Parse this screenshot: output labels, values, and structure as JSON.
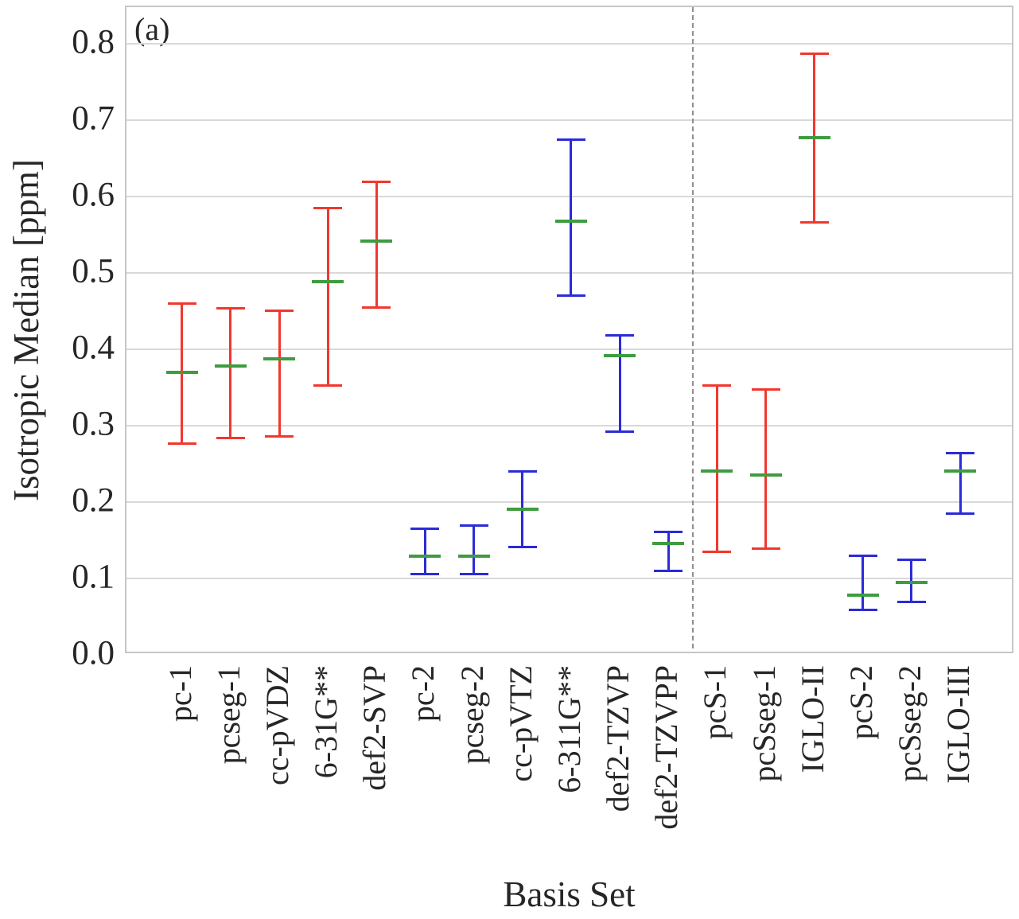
{
  "colors": {
    "red": "#f2372e",
    "blue": "#2b2bd8",
    "green": "#3f9c41",
    "grid": "#d9d9d9",
    "spine": "#c6c6c6",
    "divider": "#8f8f8f",
    "text": "#262626"
  },
  "chart_data": {
    "type": "errorbar",
    "annotation": "(a)",
    "xlabel": "Basis Set",
    "ylabel": "Isotropic Median [ppm]",
    "ylim": [
      0.0,
      0.85
    ],
    "yticks": [
      "0.0",
      "0.1",
      "0.2",
      "0.3",
      "0.4",
      "0.5",
      "0.6",
      "0.7",
      "0.8"
    ],
    "grid": "horizontal-only",
    "legend": "none",
    "divider_after_index": 10,
    "series": [
      {
        "label": "pc-1",
        "color": "red",
        "low": 0.277,
        "median": 0.37,
        "high": 0.46
      },
      {
        "label": "pcseg-1",
        "color": "red",
        "low": 0.284,
        "median": 0.378,
        "high": 0.454
      },
      {
        "label": "cc-pVDZ",
        "color": "red",
        "low": 0.286,
        "median": 0.387,
        "high": 0.451
      },
      {
        "label": "6-31G**",
        "color": "red",
        "low": 0.353,
        "median": 0.489,
        "high": 0.585
      },
      {
        "label": "def2-SVP",
        "color": "red",
        "low": 0.455,
        "median": 0.542,
        "high": 0.619
      },
      {
        "label": "pc-2",
        "color": "blue",
        "low": 0.106,
        "median": 0.129,
        "high": 0.165
      },
      {
        "label": "pcseg-2",
        "color": "blue",
        "low": 0.106,
        "median": 0.129,
        "high": 0.169
      },
      {
        "label": "cc-pVTZ",
        "color": "blue",
        "low": 0.141,
        "median": 0.191,
        "high": 0.24
      },
      {
        "label": "6-311G**",
        "color": "blue",
        "low": 0.47,
        "median": 0.568,
        "high": 0.674
      },
      {
        "label": "def2-TZVP",
        "color": "blue",
        "low": 0.292,
        "median": 0.392,
        "high": 0.418
      },
      {
        "label": "def2-TZVPP",
        "color": "blue",
        "low": 0.11,
        "median": 0.146,
        "high": 0.161
      },
      {
        "label": "pcS-1",
        "color": "red",
        "low": 0.135,
        "median": 0.241,
        "high": 0.353
      },
      {
        "label": "pcSseg-1",
        "color": "red",
        "low": 0.139,
        "median": 0.235,
        "high": 0.347
      },
      {
        "label": "IGLO-II",
        "color": "red",
        "low": 0.566,
        "median": 0.677,
        "high": 0.787
      },
      {
        "label": "pcS-2",
        "color": "blue",
        "low": 0.059,
        "median": 0.078,
        "high": 0.13
      },
      {
        "label": "pcSseg-2",
        "color": "blue",
        "low": 0.069,
        "median": 0.095,
        "high": 0.125
      },
      {
        "label": "IGLO-III",
        "color": "blue",
        "low": 0.185,
        "median": 0.241,
        "high": 0.264
      }
    ]
  }
}
